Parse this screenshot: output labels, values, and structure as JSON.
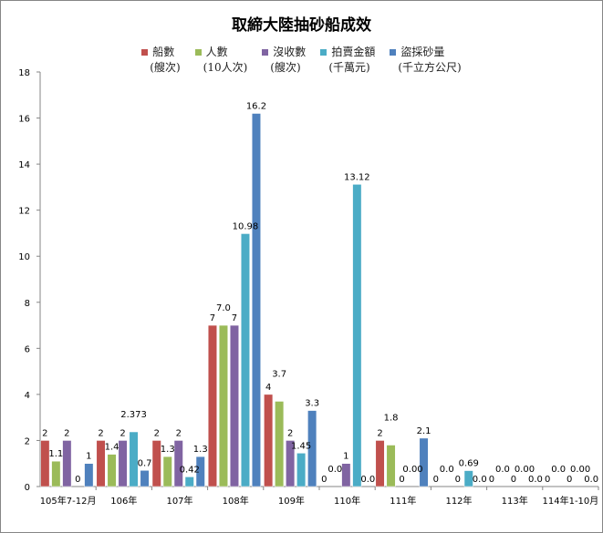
{
  "chart_data": {
    "type": "bar",
    "title": "取締大陸抽砂船成效",
    "categories": [
      "105年7-12月",
      "106年",
      "107年",
      "108年",
      "109年",
      "110年",
      "111年",
      "112年",
      "113年",
      "114年1-10月"
    ],
    "ylim": [
      0,
      18
    ],
    "yticks": [
      0,
      2,
      4,
      6,
      8,
      10,
      12,
      14,
      16,
      18
    ],
    "grid": false,
    "legend": "top",
    "series": [
      {
        "name": "船數",
        "unit": "(艘次)",
        "color": "#C0504D",
        "values": [
          2,
          2,
          2,
          7,
          4,
          0,
          2,
          0,
          0,
          0
        ],
        "labels": [
          "2",
          "2",
          "2",
          "7",
          "4",
          "0",
          "2",
          "0",
          "0",
          "0"
        ]
      },
      {
        "name": "人數",
        "unit": "(10人次)",
        "color": "#9BBB59",
        "values": [
          1.1,
          1.4,
          1.3,
          7.0,
          3.7,
          0,
          1.8,
          0,
          0,
          0
        ],
        "labels": [
          "1.1",
          "1.4",
          "1.3",
          "7.0",
          "3.7",
          "0.0",
          "1.8",
          "0.0",
          "0.0",
          "0.0"
        ]
      },
      {
        "name": "沒收數",
        "unit": "(艘次)",
        "color": "#8064A2",
        "values": [
          2,
          2,
          2,
          7,
          2,
          1,
          0,
          0,
          0,
          0
        ],
        "labels": [
          "2",
          "2",
          "2",
          "7",
          "2",
          "1",
          "0",
          "0",
          "0",
          "0"
        ]
      },
      {
        "name": "拍賣金額",
        "unit": "(千萬元)",
        "color": "#4BACC6",
        "values": [
          0,
          2.373,
          0.42,
          10.98,
          1.45,
          13.12,
          0,
          0.69,
          0,
          0
        ],
        "labels": [
          "0",
          "2.373",
          "0.42",
          "10.98",
          "1.45",
          "13.12",
          "0.00",
          "0.69",
          "0.00",
          "0.00"
        ]
      },
      {
        "name": "盜採砂量",
        "unit": "(千立方公尺)",
        "color": "#4F81BD",
        "values": [
          1,
          0.7,
          1.3,
          16.2,
          3.3,
          0,
          2.1,
          0,
          0,
          0
        ],
        "labels": [
          "1",
          "0.7",
          "1.3",
          "16.2",
          "3.3",
          "0.0",
          "2.1",
          "0.0",
          "0.0",
          "0.0"
        ]
      }
    ]
  }
}
